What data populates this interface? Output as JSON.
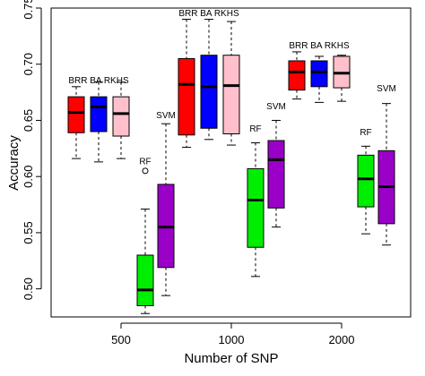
{
  "chart_data": {
    "type": "boxplot",
    "xlabel": "Number of SNP",
    "ylabel": "Accuracy",
    "ylim": [
      0.475,
      0.75
    ],
    "y_ticks": [
      "0.50",
      "0.55",
      "0.60",
      "0.65",
      "0.70",
      "0.75"
    ],
    "categories": [
      "500",
      "1000",
      "2000"
    ],
    "grid": false,
    "method_colors": {
      "BRR": "#ff0000",
      "BA": "#0000ff",
      "RKHS": "#ffc0cb",
      "RF": "#00ee00",
      "SVM": "#9a00c8"
    },
    "groups": [
      {
        "category": "500",
        "boxes": [
          {
            "method": "BRR",
            "min": 0.616,
            "q1": 0.639,
            "median": 0.657,
            "q3": 0.671,
            "max": 0.68,
            "outliers": []
          },
          {
            "method": "BA",
            "min": 0.613,
            "q1": 0.64,
            "median": 0.662,
            "q3": 0.671,
            "max": 0.684,
            "outliers": []
          },
          {
            "method": "RKHS",
            "min": 0.616,
            "q1": 0.636,
            "median": 0.656,
            "q3": 0.671,
            "max": 0.684,
            "outliers": []
          },
          {
            "method": "RF",
            "min": 0.478,
            "q1": 0.485,
            "median": 0.499,
            "q3": 0.53,
            "max": 0.571,
            "outliers": [
              0.605
            ]
          },
          {
            "method": "SVM",
            "min": 0.494,
            "q1": 0.519,
            "median": 0.555,
            "q3": 0.593,
            "max": 0.647,
            "outliers": []
          }
        ]
      },
      {
        "category": "1000",
        "boxes": [
          {
            "method": "BRR",
            "min": 0.626,
            "q1": 0.637,
            "median": 0.682,
            "q3": 0.705,
            "max": 0.74,
            "outliers": []
          },
          {
            "method": "BA",
            "min": 0.633,
            "q1": 0.643,
            "median": 0.68,
            "q3": 0.708,
            "max": 0.74,
            "outliers": []
          },
          {
            "method": "RKHS",
            "min": 0.628,
            "q1": 0.638,
            "median": 0.681,
            "q3": 0.708,
            "max": 0.738,
            "outliers": []
          },
          {
            "method": "RF",
            "min": 0.511,
            "q1": 0.537,
            "median": 0.579,
            "q3": 0.607,
            "max": 0.63,
            "outliers": []
          },
          {
            "method": "SVM",
            "min": 0.555,
            "q1": 0.572,
            "median": 0.615,
            "q3": 0.632,
            "max": 0.65,
            "outliers": []
          }
        ]
      },
      {
        "category": "2000",
        "boxes": [
          {
            "method": "BRR",
            "min": 0.669,
            "q1": 0.677,
            "median": 0.693,
            "q3": 0.703,
            "max": 0.711,
            "outliers": []
          },
          {
            "method": "BA",
            "min": 0.666,
            "q1": 0.68,
            "median": 0.693,
            "q3": 0.703,
            "max": 0.707,
            "outliers": []
          },
          {
            "method": "RKHS",
            "min": 0.667,
            "q1": 0.679,
            "median": 0.692,
            "q3": 0.707,
            "max": 0.708,
            "outliers": []
          },
          {
            "method": "RF",
            "min": 0.549,
            "q1": 0.573,
            "median": 0.598,
            "q3": 0.619,
            "max": 0.627,
            "outliers": []
          },
          {
            "method": "SVM",
            "min": 0.539,
            "q1": 0.558,
            "median": 0.591,
            "q3": 0.623,
            "max": 0.665,
            "outliers": []
          }
        ]
      }
    ],
    "annotations": [
      {
        "category": "500",
        "text": "BRR BA RKHS",
        "y": 0.683
      },
      {
        "category": "500",
        "text": "RF",
        "y": 0.611
      },
      {
        "category": "500",
        "text": "SVM",
        "y": 0.652
      },
      {
        "category": "1000",
        "text": "BRR BA RKHS",
        "y": 0.743
      },
      {
        "category": "1000",
        "text": "RF",
        "y": 0.64
      },
      {
        "category": "1000",
        "text": "SVM",
        "y": 0.66
      },
      {
        "category": "2000",
        "text": "BRR BA RKHS",
        "y": 0.714
      },
      {
        "category": "2000",
        "text": "RF",
        "y": 0.637
      },
      {
        "category": "2000",
        "text": "SVM",
        "y": 0.676
      }
    ]
  }
}
